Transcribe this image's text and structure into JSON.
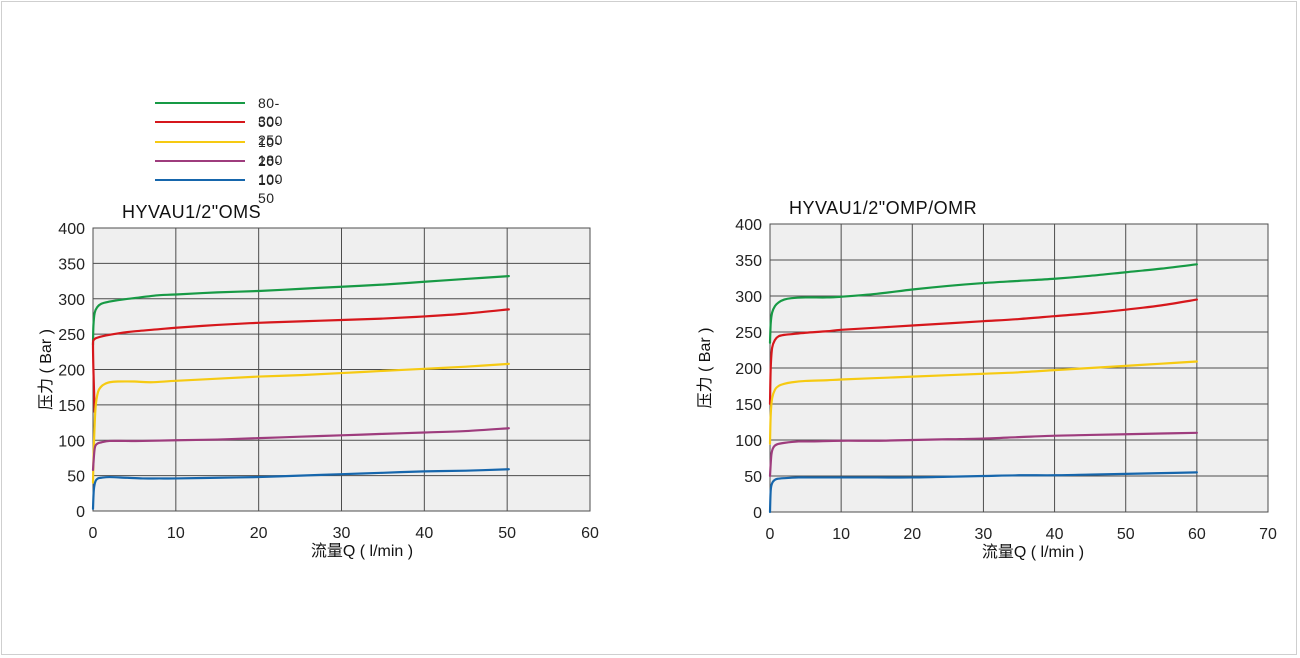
{
  "colors": {
    "series_80_300": "#179a45",
    "series_50_250": "#d6171c",
    "series_10_180": "#f6ca12",
    "series_20_100": "#9e3c7d",
    "series_10_50": "#1666ac",
    "plot_bg": "#efefef",
    "grid": "#4d4d4d"
  },
  "legend": [
    {
      "label": "80-300",
      "color": "#179a45"
    },
    {
      "label": "50-250",
      "color": "#d6171c"
    },
    {
      "label": "10-180",
      "color": "#f6ca12"
    },
    {
      "label": "20-100",
      "color": "#9e3c7d"
    },
    {
      "label": "10-50",
      "color": "#1666ac"
    }
  ],
  "chart_data": [
    {
      "type": "line",
      "title": "HYVAU1/2\"OMS",
      "xlabel": "流量Q ( l/min )",
      "ylabel": "压力 ( Bar )",
      "xlim": [
        0,
        60
      ],
      "ylim": [
        0,
        400
      ],
      "xticks": [
        "0",
        "10",
        "20",
        "30",
        "40",
        "50",
        "60"
      ],
      "yticks": [
        "0",
        "50",
        "100",
        "150",
        "200",
        "250",
        "300",
        "350",
        "400"
      ],
      "grid": true,
      "series": [
        {
          "name": "80-300",
          "color": "#179a45",
          "x": [
            0,
            0.05,
            0.2,
            0.5,
            1,
            2,
            3,
            5,
            8,
            10,
            15,
            20,
            25,
            30,
            35,
            40,
            45,
            50.2
          ],
          "y": [
            235,
            262,
            280,
            288,
            293,
            296,
            298,
            301,
            305,
            306,
            309,
            311,
            314,
            317,
            320,
            324,
            328,
            332
          ]
        },
        {
          "name": "50-250",
          "color": "#d6171c",
          "x": [
            0.2,
            0.05,
            0,
            0.05,
            0.3,
            0.8,
            1.5,
            3,
            5,
            8,
            10,
            15,
            20,
            25,
            30,
            35,
            40,
            45,
            50.2
          ],
          "y": [
            140,
            200,
            235,
            241,
            244,
            246,
            248,
            251,
            254,
            257,
            259,
            263,
            266,
            268,
            270,
            272,
            275,
            279,
            285
          ]
        },
        {
          "name": "10-180",
          "color": "#f6ca12",
          "x": [
            0,
            0.1,
            0.3,
            0.6,
            1,
            1.5,
            2,
            3,
            5,
            7,
            10,
            15,
            20,
            25,
            30,
            35,
            40,
            45,
            50.2
          ],
          "y": [
            40,
            90,
            145,
            168,
            176,
            180,
            182,
            183,
            183,
            182,
            184,
            187,
            190,
            192,
            195,
            198,
            201,
            204,
            208
          ]
        },
        {
          "name": "20-100",
          "color": "#9e3c7d",
          "x": [
            0,
            0.2,
            0.5,
            1,
            2,
            4,
            6,
            10,
            15,
            20,
            25,
            30,
            35,
            40,
            45,
            50.2
          ],
          "y": [
            58,
            88,
            95,
            97,
            99,
            99,
            99,
            100,
            101,
            103,
            105,
            107,
            109,
            111,
            113,
            117
          ]
        },
        {
          "name": "10-50",
          "color": "#1666ac",
          "x": [
            0,
            0.1,
            0.3,
            0.6,
            1,
            2,
            4,
            6,
            8,
            10,
            15,
            20,
            25,
            30,
            35,
            40,
            45,
            50.2
          ],
          "y": [
            3,
            30,
            42,
            46,
            47,
            48,
            47,
            46,
            46,
            46,
            47,
            48,
            50,
            52,
            54,
            56,
            57,
            59
          ]
        }
      ]
    },
    {
      "type": "line",
      "title": "HYVAU1/2\"OMP/OMR",
      "xlabel": "流量Q ( l/min )",
      "ylabel": "压力 ( Bar )",
      "xlim": [
        0,
        70
      ],
      "ylim": [
        0,
        400
      ],
      "xticks": [
        "0",
        "10",
        "20",
        "30",
        "40",
        "50",
        "60",
        "70"
      ],
      "yticks": [
        "0",
        "50",
        "100",
        "150",
        "200",
        "250",
        "300",
        "350",
        "400"
      ],
      "grid": true,
      "series": [
        {
          "name": "80-300",
          "color": "#179a45",
          "x": [
            0,
            0.1,
            0.3,
            0.7,
            1.2,
            2,
            3,
            5,
            8,
            10,
            15,
            20,
            25,
            30,
            35,
            40,
            45,
            50,
            55,
            60
          ],
          "y": [
            235,
            262,
            277,
            286,
            291,
            295,
            297,
            298,
            298,
            299,
            303,
            309,
            314,
            318,
            321,
            324,
            328,
            333,
            338,
            344
          ]
        },
        {
          "name": "50-250",
          "color": "#d6171c",
          "x": [
            0,
            0.1,
            0.3,
            0.7,
            1.2,
            2,
            3,
            5,
            8,
            10,
            15,
            20,
            25,
            30,
            35,
            40,
            45,
            50,
            55,
            60
          ],
          "y": [
            150,
            200,
            228,
            239,
            244,
            246,
            247,
            249,
            251,
            253,
            256,
            259,
            262,
            265,
            268,
            272,
            276,
            281,
            287,
            295
          ]
        },
        {
          "name": "10-180",
          "color": "#f6ca12",
          "x": [
            0,
            0.1,
            0.3,
            0.7,
            1.2,
            2,
            3,
            5,
            8,
            10,
            15,
            20,
            25,
            30,
            35,
            40,
            45,
            50,
            55,
            60
          ],
          "y": [
            95,
            135,
            158,
            170,
            175,
            178,
            180,
            182,
            183,
            184,
            186,
            188,
            190,
            192,
            194,
            197,
            200,
            203,
            206,
            209
          ]
        },
        {
          "name": "20-100",
          "color": "#9e3c7d",
          "x": [
            0,
            0.2,
            0.5,
            1,
            2,
            4,
            6,
            10,
            15,
            20,
            25,
            30,
            35,
            40,
            45,
            50,
            55,
            60
          ],
          "y": [
            50,
            80,
            90,
            94,
            96,
            98,
            98,
            99,
            99,
            100,
            101,
            102,
            104,
            106,
            107,
            108,
            109,
            110
          ]
        },
        {
          "name": "10-50",
          "color": "#1666ac",
          "x": [
            0,
            0.1,
            0.3,
            0.6,
            1,
            2,
            4,
            6,
            8,
            10,
            15,
            20,
            25,
            30,
            35,
            40,
            45,
            50,
            55,
            60
          ],
          "y": [
            0,
            30,
            40,
            44,
            46,
            47,
            48,
            48,
            48,
            48,
            48,
            48,
            49,
            50,
            51,
            51,
            52,
            53,
            54,
            55
          ]
        }
      ]
    }
  ]
}
